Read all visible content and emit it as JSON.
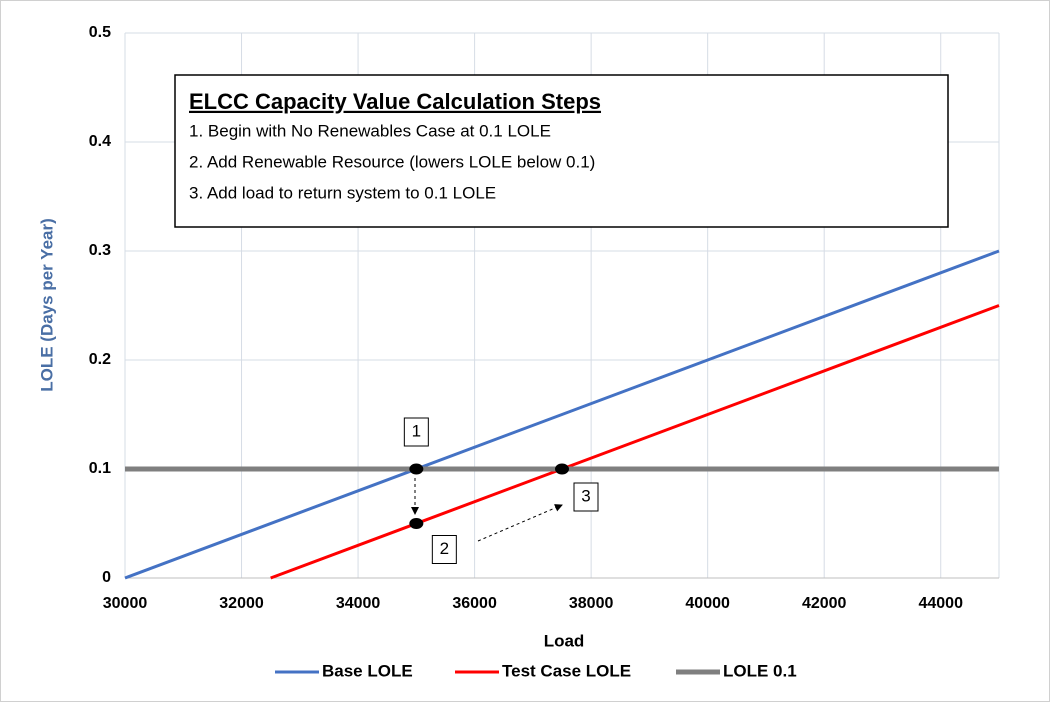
{
  "chart_data": {
    "type": "line",
    "xlabel": "Load",
    "ylabel": "LOLE (Days per Year)",
    "xlim": [
      30000,
      45000
    ],
    "xticks": [
      30000,
      32000,
      34000,
      36000,
      38000,
      40000,
      42000,
      44000
    ],
    "ylim": [
      0,
      0.5
    ],
    "yticks": [
      0,
      0.1,
      0.2,
      0.3,
      0.4,
      0.5
    ],
    "grid": true,
    "legend": "bottom",
    "series": [
      {
        "name": "Base LOLE",
        "color": "#4472c4",
        "x": [
          30000,
          45000
        ],
        "values": [
          0,
          0.3
        ]
      },
      {
        "name": "Test Case LOLE",
        "color": "#ff0000",
        "x": [
          32500,
          45000
        ],
        "values": [
          0,
          0.25
        ]
      },
      {
        "name": "LOLE 0.1",
        "color": "#7f7f7f",
        "x": [
          30000,
          45000
        ],
        "values": [
          0.1,
          0.1
        ]
      }
    ],
    "points": [
      {
        "x": 35000,
        "y": 0.1,
        "label": "1"
      },
      {
        "x": 35000,
        "y": 0.05,
        "label": "2"
      },
      {
        "x": 37500,
        "y": 0.1,
        "label": "3"
      }
    ],
    "annotation": {
      "title": "ELCC Capacity Value Calculation Steps",
      "lines": [
        "1. Begin with No Renewables Case at 0.1 LOLE",
        "2. Add Renewable Resource (lowers LOLE below 0.1)",
        "3. Add load to return system to 0.1 LOLE"
      ]
    }
  }
}
